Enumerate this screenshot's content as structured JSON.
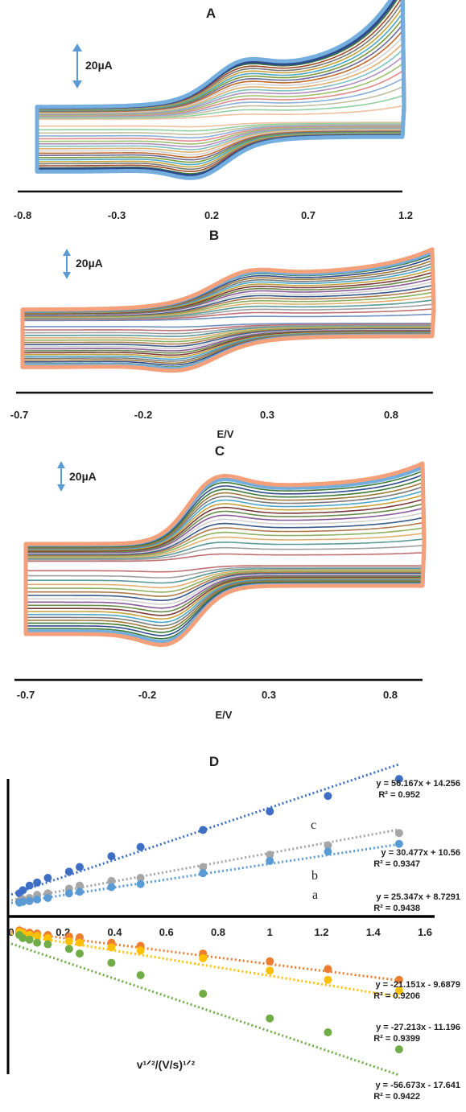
{
  "panels": [
    {
      "letter": "A",
      "scale_label": "20µA",
      "xticks": [
        "-0.8",
        "-0.3",
        "0.2",
        "0.7",
        "1.2"
      ],
      "xlabel": ""
    },
    {
      "letter": "B",
      "scale_label": "20µA",
      "xticks": [
        "-0.7",
        "-0.2",
        "0.3",
        "0.8"
      ],
      "xlabel": "E/V"
    },
    {
      "letter": "C",
      "scale_label": "20µA",
      "xticks": [
        "-0.7",
        "-0.2",
        "0.3",
        "0.8"
      ],
      "xlabel": "E/V"
    }
  ],
  "panel_d": {
    "letter": "D",
    "xlabel": "v¹ᐟ²/(V/s)¹ᐟ²",
    "xticks": [
      "0",
      "0.2",
      "0.4",
      "0.6",
      "0.8",
      "1",
      "1.2",
      "1.4",
      "1.6"
    ],
    "series_labels": [
      "c",
      "b",
      "a"
    ],
    "equations": [
      {
        "eq": "y = 56.167x + 14.256",
        "r2": "R² = 0.952"
      },
      {
        "eq": "y = 30.477x + 10.56",
        "r2": "R² = 0.9347"
      },
      {
        "eq": "y = 25.347x + 8.7291",
        "r2": "R² = 0.9438"
      },
      {
        "eq": "y = -21.151x - 9.6879",
        "r2": "R² = 0.9206"
      },
      {
        "eq": "y = -27.213x - 11.196",
        "r2": "R² = 0.9399"
      },
      {
        "eq": "y = -56.673x - 17.641",
        "r2": "R² = 0.9422"
      }
    ]
  },
  "chart_data": [
    {
      "type": "line",
      "title": "A",
      "xlabel": "",
      "ylabel": "",
      "x_range": [
        -0.8,
        1.2
      ],
      "curve_count": 20,
      "colors": [
        "#74aede",
        "#2e4a8a",
        "#3f7a3a",
        "#9e4b2a",
        "#7a7a7a",
        "#c8a13a",
        "#4aa6c8",
        "#7b9b3a",
        "#6a6a9a",
        "#c06a2a",
        "#d1d1d1",
        "#e0b070",
        "#7ec0c0",
        "#b090c0",
        "#a0c070",
        "#e08a8a",
        "#8ab0d8",
        "#c0c0a0",
        "#90d0a0",
        "#f0c0a0"
      ]
    },
    {
      "type": "line",
      "title": "B",
      "xlabel": "E/V",
      "ylabel": "",
      "x_range": [
        -0.7,
        0.95
      ],
      "curve_count": 20,
      "colors": [
        "#f4a07a",
        "#74aede",
        "#3f7a3a",
        "#2e4a8a",
        "#9e7a3a",
        "#7a7a7a",
        "#4aa6c8",
        "#c8a13a",
        "#7b3a3a",
        "#6a8a4a",
        "#8a5a9a",
        "#d1d1d1",
        "#3a5a8a",
        "#b07a4a",
        "#90b060",
        "#e0b070",
        "#5a9a9a",
        "#a0a0a0",
        "#c07070",
        "#7090c0"
      ]
    },
    {
      "type": "line",
      "title": "C",
      "xlabel": "E/V",
      "ylabel": "",
      "x_range": [
        -0.7,
        0.95
      ],
      "curve_count": 20,
      "colors": [
        "#f4a07a",
        "#74aede",
        "#3f7a3a",
        "#2e4a8a",
        "#3f7a3a",
        "#9e7a3a",
        "#7a7a7a",
        "#4aa6c8",
        "#c8a13a",
        "#7b3a3a",
        "#6a8a4a",
        "#8a5a9a",
        "#d1d1d1",
        "#3a5a8a",
        "#b07a4a",
        "#90b060",
        "#e0b070",
        "#5a9a9a",
        "#a0a0a0",
        "#c07070"
      ]
    },
    {
      "type": "scatter",
      "title": "D",
      "xlabel": "v¹ᐟ²/(V/s)¹ᐟ²",
      "ylabel": "",
      "xlim": [
        0,
        1.6
      ],
      "ylim": [
        -85,
        100
      ],
      "x": [
        0.0316,
        0.0447,
        0.0707,
        0.1,
        0.1414,
        0.2236,
        0.2646,
        0.3873,
        0.5,
        0.7416,
        1.0,
        1.2247,
        1.5
      ],
      "series": [
        {
          "name": "c",
          "color": "#3f6fc4",
          "values": [
            15,
            17,
            20,
            22,
            25,
            29,
            32,
            39,
            45,
            56,
            68,
            78,
            89
          ],
          "slope": 56.167,
          "intercept": 14.256
        },
        {
          "name": "b",
          "color": "#a6a6a6",
          "values": [
            10,
            11,
            12,
            14,
            15,
            18,
            20,
            23,
            25,
            32,
            40,
            46,
            54
          ],
          "slope": 30.477,
          "intercept": 10.56
        },
        {
          "name": "a",
          "color": "#5b9bd5",
          "values": [
            9,
            9.5,
            10,
            11,
            12,
            15,
            16,
            19,
            21,
            28,
            36,
            42,
            47
          ],
          "slope": 25.347,
          "intercept": 8.7291
        },
        {
          "name": "",
          "color": "#ed7d31",
          "values": [
            -9,
            -10,
            -10.5,
            -11,
            -12,
            -13,
            -13.5,
            -17,
            -19,
            -24,
            -29,
            -34,
            -41
          ],
          "slope": -21.151,
          "intercept": -9.6879
        },
        {
          "name": "",
          "color": "#ffc000",
          "values": [
            -10,
            -11,
            -12,
            -12.5,
            -14,
            -16,
            -17,
            -20,
            -22,
            -27,
            -35,
            -41,
            -48
          ],
          "slope": -27.213,
          "intercept": -11.196
        },
        {
          "name": "",
          "color": "#70ad47",
          "values": [
            -12,
            -14,
            -15,
            -17,
            -18,
            -21,
            -24,
            -30,
            -38,
            -50,
            -66,
            -75,
            -86
          ],
          "slope": -56.673,
          "intercept": -17.641
        }
      ]
    }
  ]
}
